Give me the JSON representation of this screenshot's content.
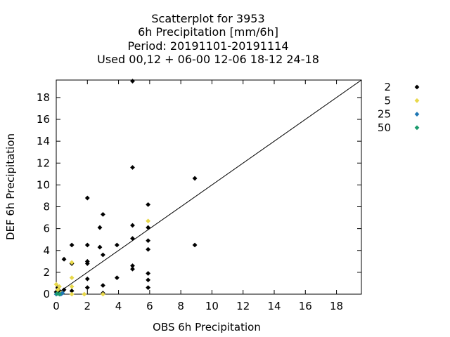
{
  "chart_data": {
    "type": "scatter",
    "title_lines": [
      "Scatterplot for     3953",
      "6h Precipitation [mm/6h]",
      "Period: 20191101-20191114",
      "Used  00,12  + 06-00 12-06 18-12 24-18"
    ],
    "xlabel": "OBS 6h Precipitation",
    "ylabel": "DEF 6h Precipitation",
    "xlim": [
      0,
      19.6
    ],
    "ylim": [
      0,
      19.6
    ],
    "xticks": [
      0,
      2,
      4,
      6,
      8,
      10,
      12,
      14,
      16,
      18
    ],
    "yticks": [
      0,
      2,
      4,
      6,
      8,
      10,
      12,
      14,
      16,
      18
    ],
    "reference_line": "y = x",
    "grid": false,
    "legend_position": "right-outside",
    "series": [
      {
        "name": "2",
        "color": "#000000",
        "points": [
          [
            0,
            0.2
          ],
          [
            0.1,
            0.6
          ],
          [
            0.2,
            0.3
          ],
          [
            0.5,
            0.4
          ],
          [
            0.5,
            3.2
          ],
          [
            1.0,
            4.5
          ],
          [
            1.0,
            2.8
          ],
          [
            1.0,
            0.3
          ],
          [
            2.0,
            8.8
          ],
          [
            2.0,
            4.5
          ],
          [
            2.0,
            3.0
          ],
          [
            2.0,
            2.8
          ],
          [
            2.0,
            1.4
          ],
          [
            2.0,
            0.6
          ],
          [
            2.8,
            6.1
          ],
          [
            2.8,
            4.3
          ],
          [
            3.0,
            7.3
          ],
          [
            3.0,
            3.6
          ],
          [
            3.0,
            0.8
          ],
          [
            3.0,
            0.1
          ],
          [
            3.9,
            4.5
          ],
          [
            3.9,
            1.5
          ],
          [
            4.9,
            19.5
          ],
          [
            4.9,
            11.6
          ],
          [
            4.9,
            6.3
          ],
          [
            4.9,
            5.1
          ],
          [
            4.9,
            2.6
          ],
          [
            4.9,
            2.3
          ],
          [
            5.9,
            8.2
          ],
          [
            5.9,
            6.1
          ],
          [
            5.9,
            4.9
          ],
          [
            5.9,
            4.1
          ],
          [
            5.9,
            1.9
          ],
          [
            5.9,
            1.3
          ],
          [
            5.9,
            0.6
          ],
          [
            8.9,
            10.6
          ],
          [
            8.9,
            4.5
          ]
        ]
      },
      {
        "name": "5",
        "color": "#e8d84a",
        "points": [
          [
            0,
            0.9
          ],
          [
            0.1,
            0.4
          ],
          [
            0.2,
            0.7
          ],
          [
            0.3,
            0.1
          ],
          [
            1.0,
            2.9
          ],
          [
            1.0,
            1.5
          ],
          [
            1.0,
            0.7
          ],
          [
            1.0,
            0.0
          ],
          [
            1.8,
            0.0
          ],
          [
            3.0,
            0.0
          ],
          [
            5.9,
            6.7
          ]
        ]
      },
      {
        "name": "25",
        "color": "#1f77b4",
        "points": [
          [
            0,
            0.0
          ],
          [
            0.3,
            0.0
          ],
          [
            0.4,
            0.1
          ]
        ]
      },
      {
        "name": "50",
        "color": "#1a9a6c",
        "points": [
          [
            0.05,
            0.05
          ],
          [
            0.2,
            0.0
          ]
        ]
      }
    ]
  }
}
